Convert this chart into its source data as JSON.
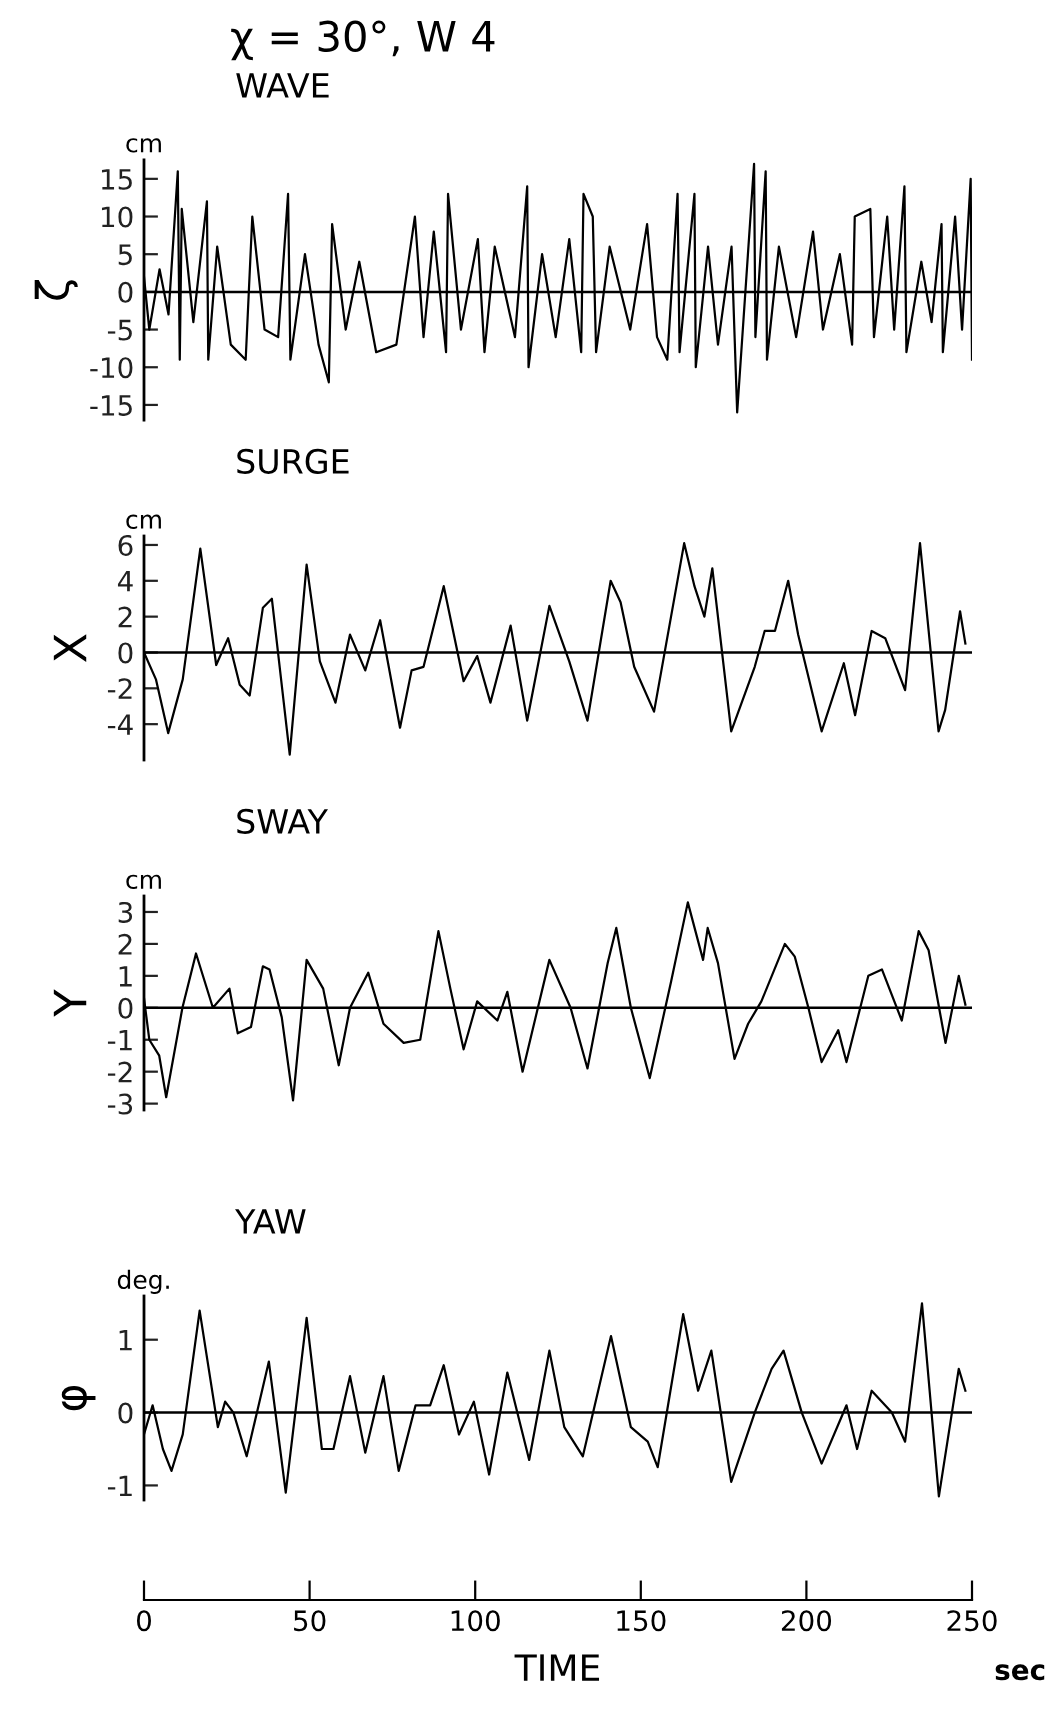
{
  "chart_data": [
    {
      "type": "line",
      "title": "χ = 30°, W 4",
      "subtitle": "WAVE",
      "ylabel": "ζ",
      "annotations": [
        "cm"
      ],
      "xlim": [
        0,
        250
      ],
      "ylim": [
        -17,
        17.5
      ],
      "yticks": [
        -15,
        -10,
        -5,
        0,
        5,
        10,
        15
      ],
      "tick_labels": "y",
      "grid": false,
      "ref_lines": [
        {
          "axis": "y",
          "value": 0
        }
      ],
      "x": [
        0,
        1.6,
        4.7,
        7.4,
        10.2,
        10.8,
        11.4,
        14.9,
        19.0,
        19.4,
        22.1,
        26.2,
        30.7,
        32.7,
        36.4,
        40.5,
        43.5,
        44.2,
        48.6,
        52.7,
        55.8,
        56.8,
        60.9,
        65.0,
        70.1,
        76.2,
        81.8,
        84.4,
        87.5,
        91.2,
        91.8,
        95.7,
        100.8,
        102.8,
        105.9,
        112.0,
        115.7,
        116.1,
        120.2,
        124.3,
        128.4,
        132.0,
        132.7,
        135.5,
        136.5,
        140.6,
        146.8,
        151.9,
        154.9,
        158.0,
        161.1,
        161.7,
        166.2,
        166.6,
        170.3,
        173.3,
        177.4,
        179.1,
        184.2,
        184.6,
        187.7,
        188.1,
        191.7,
        196.9,
        202.0,
        205.0,
        210.1,
        213.8,
        214.6,
        219.3,
        220.4,
        224.4,
        226.5,
        229.6,
        230.2,
        234.7,
        237.8,
        240.8,
        241.2,
        244.9,
        247.0,
        249.6,
        250
      ],
      "series": [
        {
          "color": "#000000",
          "values": [
            2,
            -5,
            3,
            -3,
            16,
            -9,
            11,
            -4,
            12,
            -9,
            6,
            -7,
            -9,
            10,
            -5,
            -6,
            13,
            -9,
            5,
            -7,
            -12,
            9,
            -5,
            4,
            -8,
            -7,
            10,
            -6,
            8,
            -8,
            13,
            -5,
            7,
            -8,
            6,
            -6,
            14,
            -10,
            5,
            -6,
            7,
            -8,
            13,
            10,
            -8,
            6,
            -5,
            9,
            -6,
            -9,
            13,
            -8,
            13,
            -10,
            6,
            -7,
            6,
            -16,
            17,
            -6,
            16,
            -9,
            6,
            -6,
            8,
            -5,
            5,
            -7,
            10,
            11,
            -6,
            10,
            -5,
            14,
            -8,
            4,
            -4,
            9,
            -8,
            10,
            -5,
            15,
            -9
          ]
        }
      ]
    },
    {
      "type": "line",
      "title": "SURGE",
      "ylabel": "X",
      "annotations": [
        "cm"
      ],
      "xlim": [
        0,
        250
      ],
      "ylim": [
        -6,
        6.5
      ],
      "yticks": [
        -4,
        -2,
        0,
        2,
        4,
        6
      ],
      "tick_labels": "y",
      "grid": false,
      "ref_lines": [
        {
          "axis": "y",
          "value": 0
        }
      ],
      "x": [
        0,
        3.6,
        7.3,
        11.7,
        17.0,
        21.8,
        25.4,
        28.9,
        31.9,
        35.9,
        38.6,
        44.0,
        49.1,
        53.1,
        57.8,
        62.2,
        66.8,
        71.3,
        77.3,
        80.8,
        84.4,
        90.5,
        96.5,
        100.6,
        104.6,
        110.7,
        115.7,
        122.4,
        128.4,
        133.9,
        140.9,
        143.9,
        148.0,
        154.0,
        163.1,
        166.2,
        169.2,
        171.6,
        177.3,
        184.4,
        187.4,
        190.5,
        194.5,
        197.5,
        204.6,
        211.3,
        214.7,
        219.7,
        223.8,
        229.8,
        234.3,
        239.9,
        241.9,
        246.4,
        248.0
      ],
      "series": [
        {
          "color": "#000000",
          "values": [
            0,
            -1.5,
            -4.5,
            -1.5,
            5.8,
            -0.7,
            0.8,
            -1.8,
            -2.4,
            2.5,
            3,
            -5.7,
            4.9,
            -0.5,
            -2.8,
            1,
            -1,
            1.8,
            -4.2,
            -1,
            -0.8,
            3.7,
            -1.6,
            -0.2,
            -2.8,
            1.5,
            -3.8,
            2.6,
            -0.5,
            -3.8,
            4,
            2.8,
            -0.8,
            -3.3,
            6.1,
            3.7,
            2,
            4.7,
            -4.4,
            -0.8,
            1.2,
            1.2,
            4,
            1,
            -4.4,
            -0.6,
            -3.5,
            1.2,
            0.8,
            -2.1,
            6.1,
            -4.4,
            -3.2,
            2.3,
            0.5
          ]
        }
      ]
    },
    {
      "type": "line",
      "title": "SWAY",
      "ylabel": "Y",
      "annotations": [
        "cm"
      ],
      "xlim": [
        0,
        250
      ],
      "ylim": [
        -3.2,
        3.5
      ],
      "yticks": [
        -3,
        -2,
        -1,
        0,
        1,
        2,
        3
      ],
      "tick_labels": "y",
      "grid": false,
      "ref_lines": [
        {
          "axis": "y",
          "value": 0
        }
      ],
      "x": [
        0,
        1.6,
        4.6,
        6.7,
        11.6,
        15.7,
        20.8,
        25.8,
        28.3,
        32.3,
        35.9,
        37.9,
        41.6,
        45.0,
        49.1,
        54.1,
        58.8,
        62.2,
        67.7,
        72.3,
        78.4,
        83.4,
        88.9,
        92.5,
        96.5,
        100.6,
        106.7,
        109.7,
        114.3,
        122.4,
        128.8,
        133.9,
        140.0,
        142.6,
        147.0,
        152.7,
        159.1,
        164.2,
        168.8,
        170.2,
        173.3,
        178.3,
        182.4,
        186.4,
        193.5,
        196.5,
        200.6,
        204.6,
        209.6,
        212.1,
        218.7,
        222.8,
        228.8,
        233.9,
        236.9,
        242.0,
        246.0,
        248.0
      ],
      "series": [
        {
          "color": "#000000",
          "values": [
            0.3,
            -1,
            -1.5,
            -2.8,
            0,
            1.7,
            0,
            0.6,
            -0.8,
            -0.6,
            1.3,
            1.2,
            -0.3,
            -2.9,
            1.5,
            0.6,
            -1.8,
            0,
            1.1,
            -0.5,
            -1.1,
            -1,
            2.4,
            0.6,
            -1.3,
            0.2,
            -0.4,
            0.5,
            -2,
            1.5,
            0,
            -1.9,
            1.4,
            2.5,
            0,
            -2.2,
            0.8,
            3.3,
            1.5,
            2.5,
            1.4,
            -1.6,
            -0.5,
            0.2,
            2,
            1.6,
            0,
            -1.7,
            -0.7,
            -1.7,
            1,
            1.2,
            -0.4,
            2.4,
            1.8,
            -1.1,
            1,
            0.1
          ]
        }
      ]
    },
    {
      "type": "line",
      "title": "YAW",
      "ylabel": "φ",
      "xlabel": "TIME",
      "annotations": [
        "deg.",
        "sec"
      ],
      "xlim": [
        0,
        250
      ],
      "xticks": [
        0,
        50,
        100,
        150,
        200,
        250
      ],
      "ylim": [
        -1.2,
        1.6
      ],
      "yticks": [
        -1,
        0,
        1
      ],
      "grid": false,
      "ref_lines": [
        {
          "axis": "y",
          "value": 0
        }
      ],
      "x": [
        0,
        2.6,
        5.7,
        8.3,
        11.7,
        16.8,
        22.3,
        24.5,
        27.0,
        31.0,
        37.7,
        42.8,
        49.1,
        53.7,
        57.2,
        62.2,
        66.8,
        72.3,
        76.9,
        82.0,
        86.4,
        90.5,
        95.1,
        99.6,
        104.2,
        109.7,
        116.3,
        122.4,
        126.9,
        132.5,
        141.0,
        147.0,
        152.1,
        155.1,
        162.8,
        167.3,
        171.3,
        177.3,
        184.4,
        189.5,
        193.1,
        198.6,
        204.6,
        212.1,
        215.3,
        219.7,
        225.8,
        229.8,
        234.9,
        240.0,
        246.0,
        248.0
      ],
      "series": [
        {
          "color": "#000000",
          "values": [
            -0.3,
            0.1,
            -0.5,
            -0.8,
            -0.3,
            1.4,
            -0.2,
            0.15,
            0,
            -0.6,
            0.7,
            -1.1,
            1.3,
            -0.5,
            -0.5,
            0.5,
            -0.55,
            0.5,
            -0.8,
            0.1,
            0.1,
            0.65,
            -0.3,
            0.15,
            -0.85,
            0.55,
            -0.65,
            0.85,
            -0.2,
            -0.6,
            1.05,
            -0.2,
            -0.4,
            -0.75,
            1.35,
            0.3,
            0.85,
            -0.95,
            0,
            0.6,
            0.85,
            0,
            -0.7,
            0.1,
            -0.5,
            0.3,
            0,
            -0.4,
            1.5,
            -1.15,
            0.6,
            0.3
          ]
        }
      ]
    }
  ]
}
